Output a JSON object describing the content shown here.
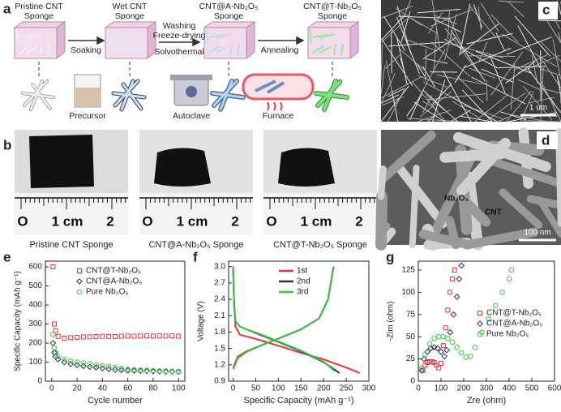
{
  "panel_labels": [
    "a",
    "b",
    "c",
    "d",
    "e",
    "f",
    "g"
  ],
  "schematic": {
    "stages": [
      [
        "Pristine CNT",
        "Sponge"
      ],
      [
        "Wet CNT",
        "Sponge"
      ],
      [
        "CNT@A-Nb₂O₅",
        "Sponge"
      ],
      [
        "CNT@T-Nb₂O₅",
        "Sponge"
      ]
    ],
    "steps": [
      "Soaking",
      "Washing",
      "Freeze-drying",
      "Solvothermal",
      "Annealing"
    ],
    "equipment": [
      "Precursor",
      "Autoclave",
      "Furnace"
    ]
  },
  "photos": {
    "captions": [
      "Pristine CNT Sponge",
      "CNT@A-Nb₂O₅ Sponge",
      "CNT@T-Nb₂O₅ Sponge"
    ],
    "ruler_labels": [
      "O",
      "1 cm",
      "2"
    ]
  },
  "sem_c": {
    "scale_bar": "1 um"
  },
  "sem_d": {
    "labels": [
      "Nb₂O₅",
      "CNT"
    ],
    "scale_bar": "100 nm"
  },
  "chart_data": [
    {
      "type": "scatter",
      "xlabel": "Cycle number",
      "ylabel": "Specific Capacity (mAh g⁻¹)",
      "xlim": [
        -5,
        105
      ],
      "ylim": [
        0,
        630
      ],
      "xticks": [
        0,
        20,
        40,
        60,
        80,
        100
      ],
      "yticks": [
        0,
        100,
        200,
        300,
        400,
        500,
        600
      ],
      "legend": "upper right",
      "x": [
        1,
        2,
        3,
        5,
        10,
        15,
        20,
        25,
        30,
        35,
        40,
        45,
        50,
        55,
        60,
        65,
        70,
        75,
        80,
        85,
        90,
        95,
        100
      ],
      "series": [
        {
          "name": "CNT@T-Nb₂O₅",
          "color": "#e8333a",
          "marker": "square",
          "values": [
            600,
            300,
            265,
            235,
            225,
            228,
            230,
            232,
            233,
            234,
            236,
            235,
            234,
            236,
            237,
            236,
            237,
            238,
            237,
            238,
            237,
            238,
            236
          ]
        },
        {
          "name": "CNT@A-Nb₂O₅",
          "color": "#2b2d5e",
          "marker": "diamond",
          "values": [
            200,
            150,
            130,
            115,
            100,
            90,
            85,
            80,
            75,
            72,
            68,
            64,
            60,
            58,
            56,
            55,
            54,
            53,
            52,
            51,
            50,
            50,
            49
          ]
        },
        {
          "name": "Pure Nb₂O₅",
          "color": "#3ec43e",
          "marker": "circle",
          "values": [
            245,
            175,
            150,
            130,
            115,
            105,
            100,
            95,
            90,
            85,
            82,
            78,
            72,
            68,
            62,
            60,
            58,
            56,
            55,
            54,
            53,
            52,
            51
          ]
        }
      ]
    },
    {
      "type": "line",
      "xlabel": "Specific Capacity (mAh g⁻¹)",
      "ylabel": "Voltage (V)",
      "xlim": [
        -10,
        300
      ],
      "ylim": [
        0.9,
        3.1
      ],
      "xticks": [
        0,
        50,
        100,
        150,
        200,
        250,
        300
      ],
      "yticks": [
        0.9,
        1.2,
        1.5,
        1.8,
        2.1,
        2.4,
        2.7,
        {
          "value": 3,
          "label": "3.0"
        }
      ],
      "legend": "upper right",
      "series": [
        {
          "name": "1st",
          "color": "#e8333a",
          "x": [
            0,
            2,
            5,
            15,
            30,
            60,
            100,
            150,
            200,
            250,
            280,
            null,
            0,
            10,
            30,
            60,
            100,
            150,
            190,
            210,
            218,
            222
          ],
          "values": [
            3.0,
            2.4,
            1.9,
            1.75,
            1.72,
            1.65,
            1.55,
            1.42,
            1.3,
            1.15,
            1.05,
            null,
            1.15,
            1.35,
            1.45,
            1.55,
            1.68,
            1.85,
            2.05,
            2.4,
            2.8,
            3.0
          ]
        },
        {
          "name": "2nd",
          "color": "#2b2d5e",
          "x": [
            0,
            2,
            5,
            15,
            30,
            60,
            100,
            150,
            200,
            235,
            null,
            0,
            10,
            30,
            60,
            100,
            150,
            190,
            210,
            218,
            222
          ],
          "values": [
            3.0,
            2.3,
            2.0,
            1.9,
            1.85,
            1.75,
            1.62,
            1.45,
            1.25,
            1.05,
            null,
            1.12,
            1.32,
            1.44,
            1.55,
            1.68,
            1.85,
            2.05,
            2.4,
            2.8,
            3.0
          ]
        },
        {
          "name": "3rd",
          "color": "#3ec43e",
          "x": [
            0,
            2,
            5,
            15,
            30,
            60,
            100,
            150,
            200,
            225,
            null,
            0,
            10,
            30,
            60,
            100,
            150,
            190,
            210,
            218,
            222
          ],
          "values": [
            3.0,
            2.3,
            2.0,
            1.9,
            1.85,
            1.76,
            1.63,
            1.46,
            1.26,
            1.08,
            null,
            1.12,
            1.32,
            1.44,
            1.55,
            1.68,
            1.85,
            2.05,
            2.4,
            2.8,
            3.0
          ]
        }
      ]
    },
    {
      "type": "scatter",
      "xlabel": "Zre (ohm)",
      "ylabel": "-Zim (ohm)",
      "xlim": [
        0,
        600
      ],
      "ylim": [
        0,
        135
      ],
      "xticks": [
        0,
        100,
        200,
        300,
        400,
        500,
        600
      ],
      "yticks": [
        0,
        25,
        50,
        75,
        100,
        125
      ],
      "legend": "center right",
      "series": [
        {
          "name": "CNT@T-Nb₂O₅",
          "color": "#e8333a",
          "marker": "square",
          "x": [
            20,
            30,
            40,
            50,
            60,
            70,
            80,
            90,
            100,
            110,
            120,
            130,
            140,
            150,
            160
          ],
          "values": [
            12,
            18,
            21,
            22,
            22,
            21,
            18,
            15,
            20,
            40,
            60,
            80,
            100,
            115,
            125
          ]
        },
        {
          "name": "CNT@A-Nb₂O₅",
          "color": "#2b2d5e",
          "marker": "diamond",
          "x": [
            15,
            25,
            40,
            55,
            70,
            85,
            100,
            115,
            125,
            140,
            155,
            170,
            180,
            190
          ],
          "values": [
            12,
            25,
            33,
            37,
            38,
            37,
            33,
            28,
            35,
            55,
            75,
            95,
            115,
            130
          ]
        },
        {
          "name": "Pure Nb₂O₅",
          "color": "#3ec43e",
          "marker": "circle",
          "x": [
            15,
            30,
            50,
            70,
            90,
            110,
            130,
            150,
            170,
            190,
            210,
            230,
            250,
            280,
            310,
            340,
            370,
            400,
            410
          ],
          "values": [
            15,
            30,
            42,
            48,
            50,
            50,
            48,
            44,
            38,
            32,
            27,
            28,
            38,
            55,
            70,
            85,
            100,
            115,
            125
          ]
        }
      ]
    }
  ]
}
